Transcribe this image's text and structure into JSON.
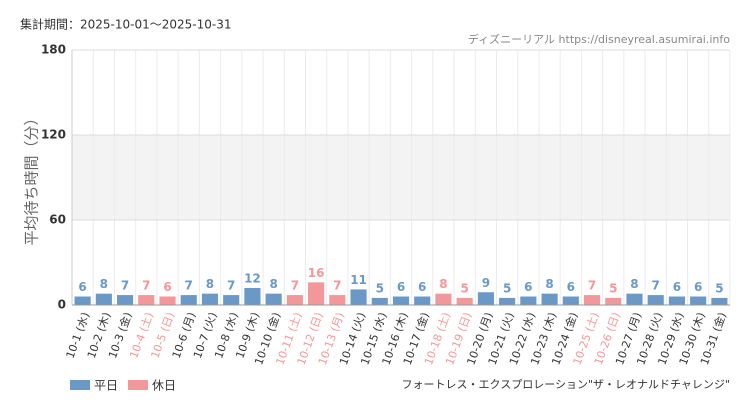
{
  "chart_data": {
    "type": "bar",
    "period": "集計期間：2025-10-01〜2025-10-31",
    "source": "ディズニーリアル https://disneyreal.asumirai.info",
    "y_label": "平均待ち時間（分）",
    "attraction": "フォートレス・エクスプロレーション\"ザ・レオナルドチャレンジ\"",
    "categories": [
      "10-1 (水)",
      "10-2 (木)",
      "10-3 (金)",
      "10-4 (土)",
      "10-5 (日)",
      "10-6 (月)",
      "10-7 (火)",
      "10-8 (水)",
      "10-9 (木)",
      "10-10 (金)",
      "10-11 (土)",
      "10-12 (日)",
      "10-13 (月)",
      "10-14 (火)",
      "10-15 (水)",
      "10-16 (木)",
      "10-17 (金)",
      "10-18 (土)",
      "10-19 (日)",
      "10-20 (月)",
      "10-21 (火)",
      "10-22 (水)",
      "10-23 (木)",
      "10-24 (金)",
      "10-25 (土)",
      "10-26 (日)",
      "10-27 (月)",
      "10-28 (火)",
      "10-29 (水)",
      "10-30 (木)",
      "10-31 (金)"
    ],
    "series": [
      {
        "name": "平日",
        "color": "#6a99c8",
        "values": [
          6,
          8,
          7,
          null,
          null,
          7,
          8,
          7,
          12,
          8,
          null,
          null,
          null,
          11,
          5,
          6,
          6,
          null,
          null,
          9,
          5,
          6,
          8,
          6,
          null,
          null,
          8,
          7,
          6,
          6,
          5
        ]
      },
      {
        "name": "休日",
        "color": "#f4979a",
        "values": [
          null,
          null,
          null,
          7,
          6,
          null,
          null,
          null,
          null,
          null,
          7,
          16,
          7,
          null,
          null,
          null,
          null,
          8,
          5,
          null,
          null,
          null,
          null,
          null,
          7,
          5,
          null,
          null,
          null,
          null,
          null
        ]
      }
    ],
    "ylim": [
      0,
      180
    ],
    "yticks": [
      0,
      60,
      120,
      180
    ],
    "grid": true
  }
}
